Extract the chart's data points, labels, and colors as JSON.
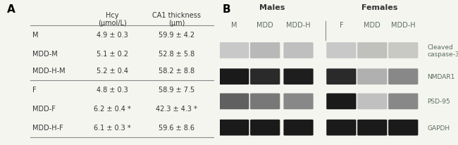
{
  "panel_a_label": "A",
  "panel_b_label": "B",
  "col_headers": [
    "Hcy\n(μmol/L)",
    "CA1 thickness\n(μm)"
  ],
  "rows": [
    [
      "M",
      "4.9 ± 0.3",
      "59.9 ± 4.2"
    ],
    [
      "MDD-M",
      "5.1 ± 0.2",
      "52.8 ± 5.8"
    ],
    [
      "MDD-H-M",
      "5.2 ± 0.4",
      "58.2 ± 8.8"
    ],
    [
      "F",
      "4.8 ± 0.3",
      "58.9 ± 7.5"
    ],
    [
      "MDD-F",
      "6.2 ± 0.4 *",
      "42.3 ± 4.3 *"
    ],
    [
      "MDD-H-F",
      "6.1 ± 0.3 *",
      "59.6 ± 8.6"
    ]
  ],
  "wb_male_labels": [
    "M",
    "MDD",
    "MDD-H"
  ],
  "wb_female_labels": [
    "F",
    "MDD",
    "MDD-H"
  ],
  "wb_band_labels": [
    "Cleaved\ncaspase-3",
    "NMDAR1",
    "PSD-95",
    "GAPDH"
  ],
  "bg_color": "#f5f5f0",
  "table_text_color": "#333333",
  "wb_text_color": "#5a6e5a",
  "wb_label_color": "#333333",
  "band_colors": {
    "cleaved": [
      "#c8c8c8",
      "#b8b8b8",
      "#c0bfbf",
      "#c8c8c8",
      "#c0c0bc",
      "#c8c8c4"
    ],
    "nmdar1": [
      "#1a1a1a",
      "#2a2a2a",
      "#1e1e1e",
      "#2a2a2a",
      "#b0b0b0",
      "#888888"
    ],
    "psd95": [
      "#606060",
      "#787878",
      "#888888",
      "#1a1a1a",
      "#c0c0c0",
      "#888888"
    ],
    "gapdh": [
      "#1a1a1a",
      "#1a1a1a",
      "#1a1a1a",
      "#1a1a1a",
      "#1a1a1a",
      "#1a1a1a"
    ]
  }
}
